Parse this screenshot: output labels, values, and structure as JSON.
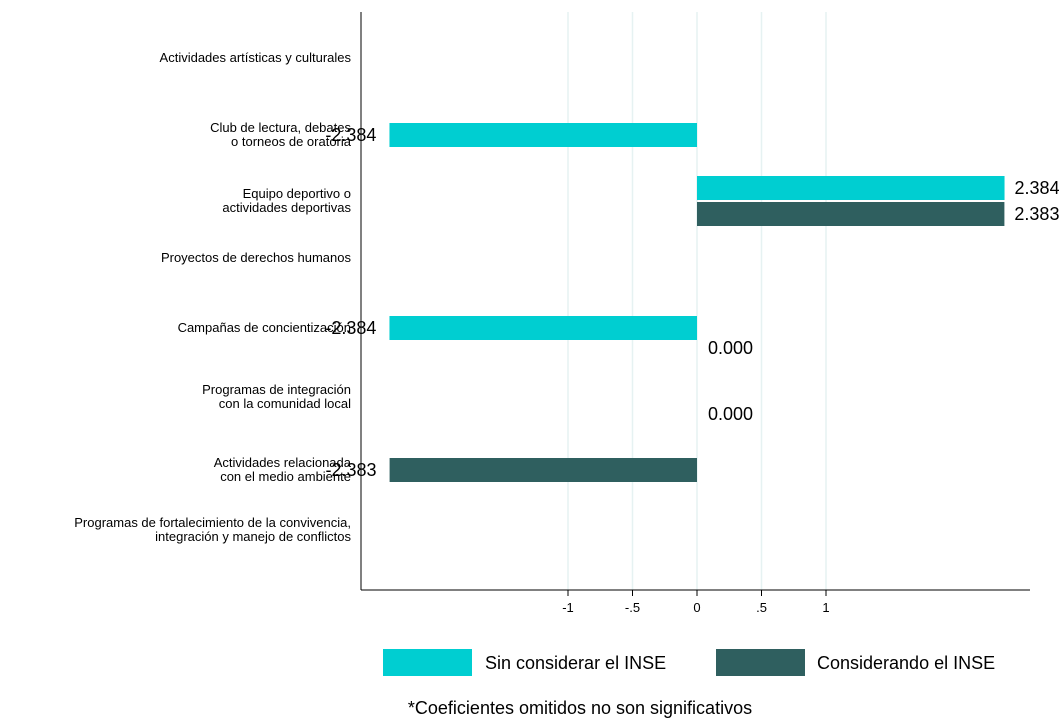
{
  "chart_data": {
    "type": "bar",
    "orientation": "horizontal",
    "categories": [
      [
        "Actividades artísticas y culturales"
      ],
      [
        "Club de lectura, debates",
        "o torneos de oratoria"
      ],
      [
        "Equipo deportivo o",
        "actividades deportivas"
      ],
      [
        "Proyectos de derechos humanos"
      ],
      [
        "Campañas de concientización"
      ],
      [
        "Programas de integración",
        "con la comunidad local"
      ],
      [
        "Actividades relacionada",
        "con el medio ambiente"
      ],
      [
        "Programas de fortalecimiento de la convivencia,",
        "integración y manejo de conflictos"
      ]
    ],
    "series": [
      {
        "name": "Sin considerar el INSE",
        "color": "#00CED1",
        "values": [
          null,
          -2.384,
          2.384,
          null,
          -2.384,
          0.0,
          null,
          null
        ],
        "labels": [
          null,
          "-2.384",
          "2.384",
          null,
          "-2.384",
          "0.000",
          null,
          null
        ]
      },
      {
        "name": "Considerando el INSE",
        "color": "#2F5F5F",
        "values": [
          null,
          null,
          2.383,
          null,
          null,
          0.0,
          -2.383,
          null
        ],
        "labels": [
          null,
          null,
          "2.383",
          null,
          null,
          "0.000",
          "-2.383",
          null
        ]
      }
    ],
    "x_ticks": [
      {
        "value": -1,
        "label": "-1"
      },
      {
        "value": -0.5,
        "label": "-.5"
      },
      {
        "value": 0,
        "label": "0"
      },
      {
        "value": 0.5,
        "label": ".5"
      },
      {
        "value": 1,
        "label": "1"
      }
    ],
    "xlim": [
      -2.5,
      2.55
    ],
    "grid": true,
    "grid_color": "#E6F2F2",
    "legend_position": "bottom",
    "note": "*Coeficientes omitidos no son significativos"
  }
}
